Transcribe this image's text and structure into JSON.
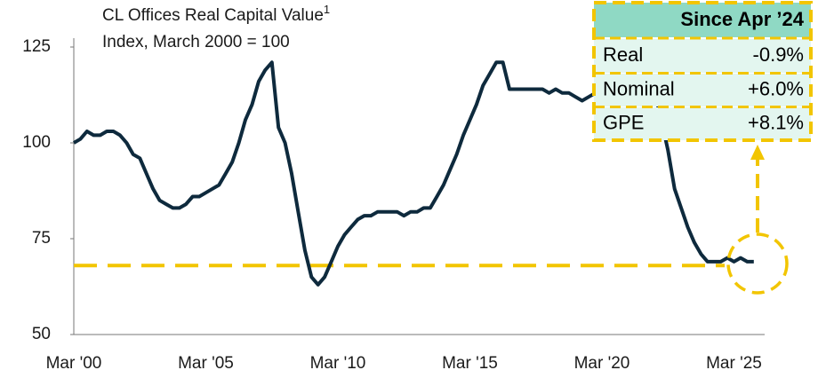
{
  "chart_data": {
    "type": "line",
    "title": "CL Offices Real Capital Value",
    "title_note": "1",
    "subtitle": "Index, March 2000 = 100",
    "categories": [
      "Mar '00",
      null,
      null,
      null,
      null,
      null,
      null,
      null,
      null,
      null,
      null,
      null,
      null,
      null,
      null,
      null,
      null,
      null,
      null,
      null,
      "Mar '05",
      null,
      null,
      null,
      null,
      null,
      null,
      null,
      null,
      null,
      null,
      null,
      null,
      null,
      null,
      null,
      null,
      null,
      null,
      null,
      "Mar '10",
      null,
      null,
      null,
      null,
      null,
      null,
      null,
      null,
      null,
      null,
      null,
      null,
      null,
      null,
      null,
      null,
      null,
      null,
      null,
      "Mar '15",
      null,
      null,
      null,
      null,
      null,
      null,
      null,
      null,
      null,
      null,
      null,
      null,
      null,
      null,
      null,
      null,
      null,
      null,
      null,
      "Mar '20",
      null,
      null,
      null,
      null,
      null,
      null,
      null,
      null,
      null,
      null,
      null,
      null,
      null,
      null,
      null,
      null,
      null,
      null,
      null,
      "Mar '25",
      null,
      null,
      null
    ],
    "values": [
      100,
      101,
      103,
      102,
      102,
      103,
      103,
      102,
      100,
      97,
      96,
      92,
      88,
      85,
      84,
      83,
      83,
      84,
      86,
      86,
      87,
      88,
      89,
      92,
      95,
      100,
      106,
      110,
      116,
      119,
      121,
      104,
      100,
      92,
      82,
      72,
      65,
      63,
      65,
      69,
      73,
      76,
      78,
      80,
      81,
      81,
      82,
      82,
      82,
      82,
      81,
      82,
      82,
      83,
      83,
      86,
      89,
      93,
      97,
      102,
      106,
      110,
      115,
      118,
      121,
      121,
      114,
      114,
      114,
      114,
      114,
      114,
      113,
      114,
      113,
      113,
      112,
      111,
      112,
      113,
      113,
      111,
      110,
      110,
      110,
      110,
      112,
      114,
      113,
      106,
      98,
      88,
      83,
      78,
      74,
      71,
      69,
      69,
      69,
      70,
      69,
      70,
      69,
      69
    ],
    "color": "#0e2a3d",
    "reference_line": 68,
    "ylim": [
      50,
      125
    ],
    "yticks": [
      50,
      75,
      100,
      125
    ],
    "table": {
      "header": "Since Apr ’24",
      "rows": [
        [
          "Real",
          "-0.9%"
        ],
        [
          "Nominal",
          "+6.0%"
        ],
        [
          "GPE",
          "+8.1%"
        ]
      ]
    }
  }
}
